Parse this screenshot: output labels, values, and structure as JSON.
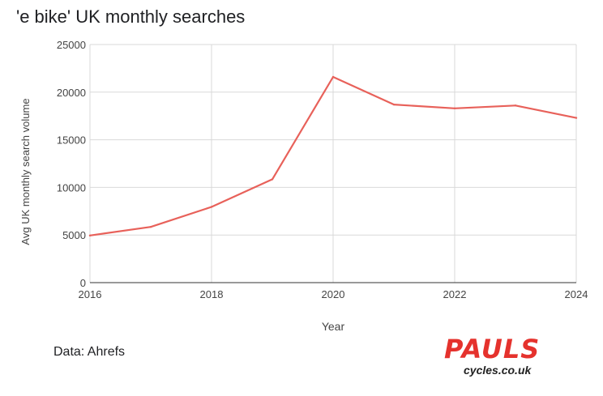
{
  "chart_data": {
    "type": "line",
    "title": "'e bike' UK monthly searches",
    "xlabel": "Year",
    "ylabel": "Avg UK monthly search volume",
    "xlim": [
      2016,
      2024
    ],
    "ylim": [
      0,
      25000
    ],
    "x_ticks": [
      "2016",
      "2018",
      "2020",
      "2022",
      "2024"
    ],
    "y_ticks": [
      "0",
      "5000",
      "10000",
      "15000",
      "20000",
      "25000"
    ],
    "grid": true,
    "series": [
      {
        "x": [
          2016,
          2017,
          2018,
          2019,
          2020,
          2021,
          2022,
          2023,
          2024
        ],
        "values": [
          4950,
          5850,
          7950,
          10850,
          21600,
          18700,
          18300,
          18600,
          17300
        ],
        "color": "#e8615a"
      }
    ]
  },
  "source": "Data: Ahrefs",
  "logo": {
    "main": "PAULS",
    "sub": "cycles.co.uk",
    "color": "#e5322d"
  }
}
